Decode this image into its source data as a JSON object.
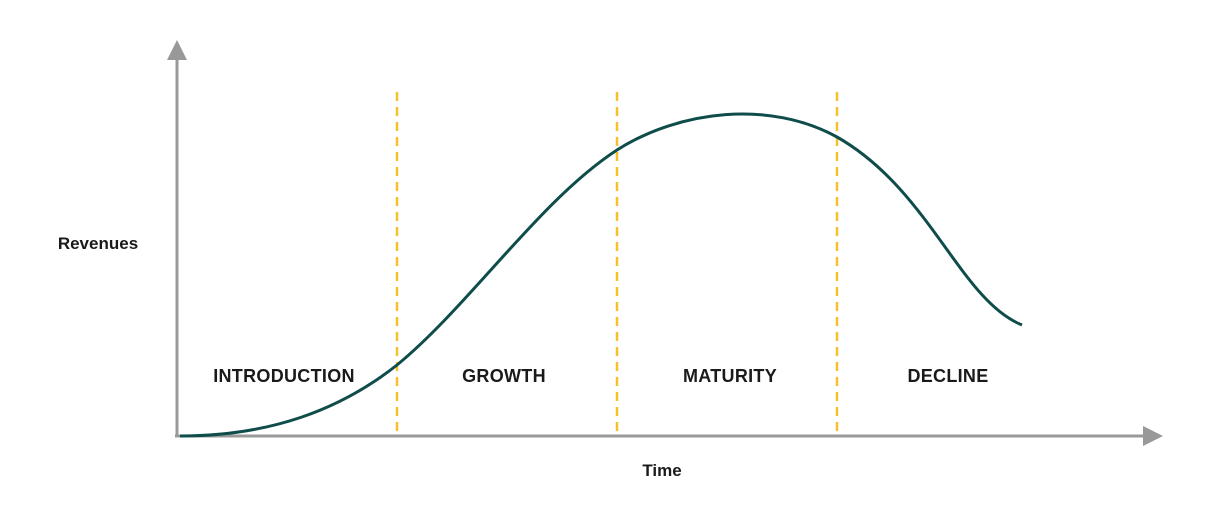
{
  "diagram": {
    "y_axis_label": "Revenues",
    "x_axis_label": "Time",
    "stages": [
      "INTRODUCTION",
      "GROWTH",
      "MATURITY",
      "DECLINE"
    ],
    "colors": {
      "axis": "#999999",
      "curve": "#0f4d4a",
      "divider": "#f5c02a",
      "text": "#1a1a1a"
    }
  }
}
